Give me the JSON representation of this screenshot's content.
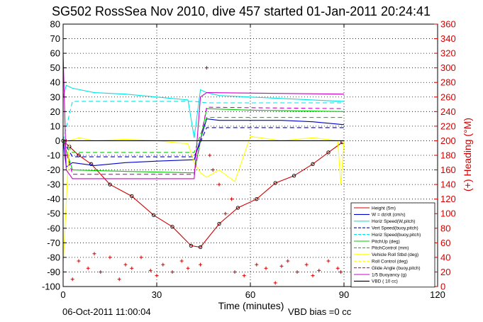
{
  "chart_data": {
    "type": "line",
    "title": "SG502 RossSea Nov 2010, dive 457 started 01-Jan-2011 20:24:41",
    "xlabel": "Time (minutes)",
    "ylabel": "",
    "y2label": "(+) Heading (°M)",
    "xlim": [
      0,
      120
    ],
    "ylim": [
      -100,
      80
    ],
    "y2lim": [
      0,
      360
    ],
    "xticks": [
      0,
      30,
      60,
      90,
      120
    ],
    "yticks": [
      80,
      70,
      60,
      50,
      40,
      30,
      20,
      10,
      0,
      -10,
      -20,
      -30,
      -40,
      -50,
      -60,
      -70,
      -80,
      -90,
      -100
    ],
    "y2ticks": [
      360,
      340,
      320,
      300,
      280,
      260,
      240,
      220,
      200,
      180,
      160,
      140,
      120,
      100,
      80,
      60,
      40,
      20,
      0
    ],
    "grid": true,
    "legend_position": "bottom-right",
    "footer_left": "06-Oct-2011 11:00:04",
    "footer_right": "VBD bias =0 cc",
    "colors": {
      "red": "#d00000",
      "blue": "#0000cc",
      "cyan": "#00e5e5",
      "green": "#00cc00",
      "yellow": "#ffff00",
      "magenta": "#cc00cc",
      "black": "#000000"
    },
    "series": [
      {
        "name": "Height (5m)",
        "color": "#d00000",
        "style": "solid",
        "x": [
          0,
          2,
          5,
          9,
          15,
          22,
          29,
          35,
          41,
          44,
          50,
          56,
          62,
          68,
          74,
          80,
          85,
          89.5
        ],
        "y": [
          0,
          -4,
          -10,
          -16,
          -30,
          -38,
          -51,
          -59,
          -72,
          -73,
          -57,
          -46,
          -40,
          -29,
          -24,
          -16,
          -8,
          -1
        ]
      },
      {
        "name": "W = dz/dt (cm/s)",
        "color": "#0000cc",
        "style": "solid",
        "x": [
          0,
          1,
          3,
          10,
          20,
          30,
          42,
          46,
          50,
          60,
          70,
          80,
          90
        ],
        "y": [
          0,
          -18,
          -15,
          -17,
          -15,
          -14,
          -13,
          15,
          14,
          14,
          14,
          13,
          11
        ]
      },
      {
        "name": "Horiz Speed(W,pitch)",
        "color": "#00e5e5",
        "style": "solid",
        "x": [
          0,
          1,
          3,
          10,
          20,
          30,
          40,
          42,
          44,
          46,
          50,
          60,
          70,
          80,
          90
        ],
        "y": [
          30,
          38,
          36,
          33,
          32,
          30,
          28,
          2,
          35,
          33,
          31,
          30,
          29,
          28,
          27
        ]
      },
      {
        "name": "Vert Speed(buoy,pitch)",
        "color": "#0000cc",
        "style": "dashed",
        "x": [
          0,
          3,
          42,
          46,
          90
        ],
        "y": [
          0,
          -11,
          -11,
          9,
          9
        ]
      },
      {
        "name": "Horiz Speed(buoy,pitch)",
        "color": "#00e5e5",
        "style": "dashed",
        "x": [
          0,
          3,
          42,
          46,
          90
        ],
        "y": [
          0,
          27,
          27,
          26,
          26
        ]
      },
      {
        "name": "PitchUp (deg)",
        "color": "#00cc00",
        "style": "solid",
        "x": [
          0,
          3,
          20,
          42,
          46,
          60,
          90
        ],
        "y": [
          0,
          -20,
          -21,
          -22,
          22,
          21,
          20
        ]
      },
      {
        "name": "PitchControl (mm)",
        "color": "#00cc00",
        "style": "dashed",
        "x": [
          0,
          3,
          42,
          46,
          90
        ],
        "y": [
          0,
          -8,
          -8,
          16,
          16
        ]
      },
      {
        "name": "Vehicle Roll Stbd (deg)",
        "color": "#ffff00",
        "style": "solid",
        "x": [
          0,
          2,
          5,
          10,
          20,
          30,
          40,
          42,
          44,
          46,
          50,
          55,
          60,
          70,
          80,
          88,
          89,
          90
        ],
        "y": [
          -85,
          0,
          2,
          0,
          1,
          0,
          -2,
          -15,
          -22,
          -25,
          -20,
          -28,
          3,
          0,
          2,
          0,
          -30,
          0
        ]
      },
      {
        "name": "Roll Control (deg)",
        "color": "#ffff00",
        "style": "dashed",
        "x": [
          0,
          90
        ],
        "y": [
          0,
          0
        ]
      },
      {
        "name": "Glide Angle (buoy,pitch)",
        "color": "#cc00cc",
        "style": "dashed",
        "x": [
          0,
          3,
          42,
          46,
          90
        ],
        "y": [
          0,
          -23,
          -23,
          23,
          22
        ]
      },
      {
        "name": "1/5 Buoyancy (g)",
        "color": "#cc00cc",
        "style": "solid",
        "x": [
          0,
          1,
          3,
          42,
          44,
          46,
          90
        ],
        "y": [
          60,
          -20,
          -26,
          -26,
          30,
          33,
          32
        ]
      },
      {
        "name": "VBD ( 10 cc)",
        "color": "#000000",
        "style": "solid",
        "x": [
          0,
          90
        ],
        "y": [
          0,
          0
        ]
      }
    ],
    "heading_series": {
      "name": "(+) Heading (°M)",
      "color": "#d00000",
      "marker": "+",
      "axis": "right",
      "x": [
        1,
        3,
        5,
        8,
        10,
        12,
        15,
        18,
        20,
        22,
        25,
        28,
        30,
        32,
        35,
        38,
        40,
        44,
        46,
        47,
        48,
        50,
        52,
        54,
        55,
        58,
        62,
        65,
        68,
        70,
        72,
        75,
        78,
        80,
        82,
        85,
        88,
        89
      ],
      "y": [
        200,
        10,
        35,
        25,
        45,
        20,
        40,
        10,
        30,
        25,
        40,
        22,
        15,
        30,
        20,
        35,
        25,
        30,
        300,
        180,
        160,
        140,
        100,
        120,
        20,
        15,
        30,
        25,
        5,
        28,
        35,
        20,
        30,
        15,
        22,
        35,
        25,
        20
      ]
    }
  }
}
